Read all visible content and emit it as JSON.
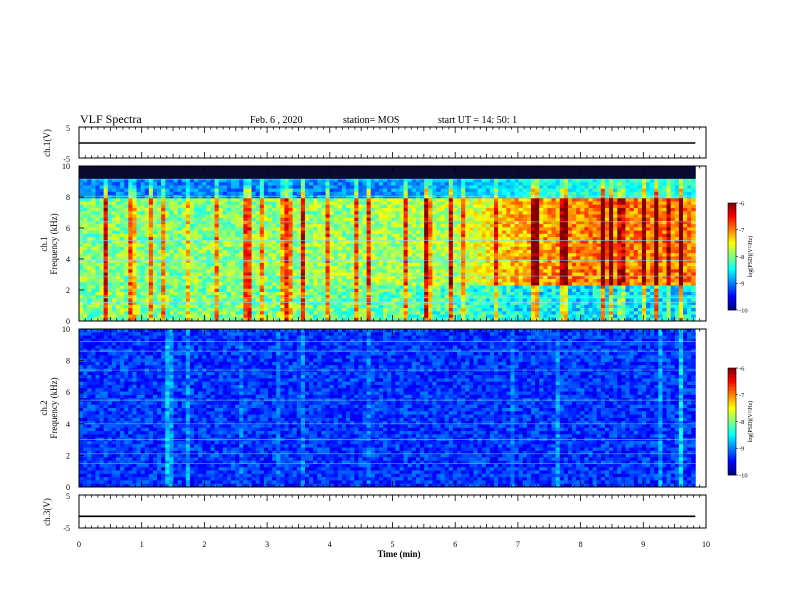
{
  "header": {
    "title": "VLF Spectra",
    "date": "Feb. 6 , 2020",
    "station": "station= MOS",
    "start": "start UT =  14: 50: 1"
  },
  "chart_data": [
    {
      "type": "line",
      "name": "ch1-waveform",
      "ylabel": "ch.1(V)",
      "ylim": [
        -5,
        5
      ],
      "yticks": [
        "5",
        "-5"
      ],
      "values_description": "flat trace",
      "x": [
        0,
        9.83
      ],
      "y": [
        0.0,
        0.0
      ],
      "xlim": [
        0,
        10
      ]
    },
    {
      "type": "heatmap",
      "name": "ch1-spectrogram",
      "ylabel": "ch.1\nFrequency (kHz)",
      "xlim": [
        0,
        10
      ],
      "ylim": [
        0,
        10
      ],
      "yticks": [
        "0",
        "2",
        "4",
        "6",
        "8",
        "10"
      ],
      "data_extent_min": 9.83,
      "colorbar": {
        "label": "log(PSD)(V²/Hz)",
        "range": [
          -10,
          -6
        ],
        "ticks": [
          "-6",
          "-7",
          "-8",
          "-9",
          "-10"
        ]
      },
      "log_psd_profile": [
        {
          "t": 0.0,
          "low_band": -8.0,
          "mid_band": -8.0,
          "high_band": -9.0
        },
        {
          "t": 2.0,
          "low_band": -8.0,
          "mid_band": -8.0,
          "high_band": -9.0
        },
        {
          "t": 4.0,
          "low_band": -8.1,
          "mid_band": -7.9,
          "high_band": -9.0
        },
        {
          "t": 6.0,
          "low_band": -8.2,
          "mid_band": -7.8,
          "high_band": -8.8
        },
        {
          "t": 7.0,
          "low_band": -8.5,
          "mid_band": -7.2,
          "high_band": -8.5
        },
        {
          "t": 8.0,
          "low_band": -8.6,
          "mid_band": -7.0,
          "high_band": -8.4
        },
        {
          "t": 9.83,
          "low_band": -8.6,
          "mid_band": -7.0,
          "high_band": -8.4
        }
      ]
    },
    {
      "type": "heatmap",
      "name": "ch2-spectrogram",
      "ylabel": "ch.2\nFrequency (kHz)",
      "xlim": [
        0,
        10
      ],
      "ylim": [
        0,
        10
      ],
      "yticks": [
        "0",
        "2",
        "4",
        "6",
        "8",
        "10"
      ],
      "data_extent_min": 9.83,
      "colorbar": {
        "label": "log(PSD)(V²/Hz)",
        "range": [
          -10,
          -6
        ],
        "ticks": [
          "-6",
          "-7",
          "-8",
          "-9",
          "-10"
        ]
      },
      "log_psd_profile": [
        {
          "t": 0.0,
          "low_band": -9.2,
          "mid_band": -9.3,
          "high_band": -9.3
        },
        {
          "t": 9.83,
          "low_band": -9.2,
          "mid_band": -9.3,
          "high_band": -9.3
        }
      ]
    },
    {
      "type": "line",
      "name": "ch3-waveform",
      "ylabel": "ch.3(V)",
      "ylim": [
        -5,
        5
      ],
      "yticks": [
        "5",
        "-5"
      ],
      "x": [
        0,
        9.83
      ],
      "y": [
        -1.0,
        -1.0
      ],
      "xlim": [
        0,
        10
      ]
    }
  ],
  "xaxis": {
    "label": "Time (min)",
    "ticks": [
      "0",
      "1",
      "2",
      "3",
      "4",
      "5",
      "6",
      "7",
      "8",
      "9",
      "10"
    ]
  },
  "colors": {
    "c_bg_high": "#0a0a30",
    "c_blue": "#1238d8",
    "c_green": "#30ee30",
    "c_red": "#ee1a10"
  }
}
